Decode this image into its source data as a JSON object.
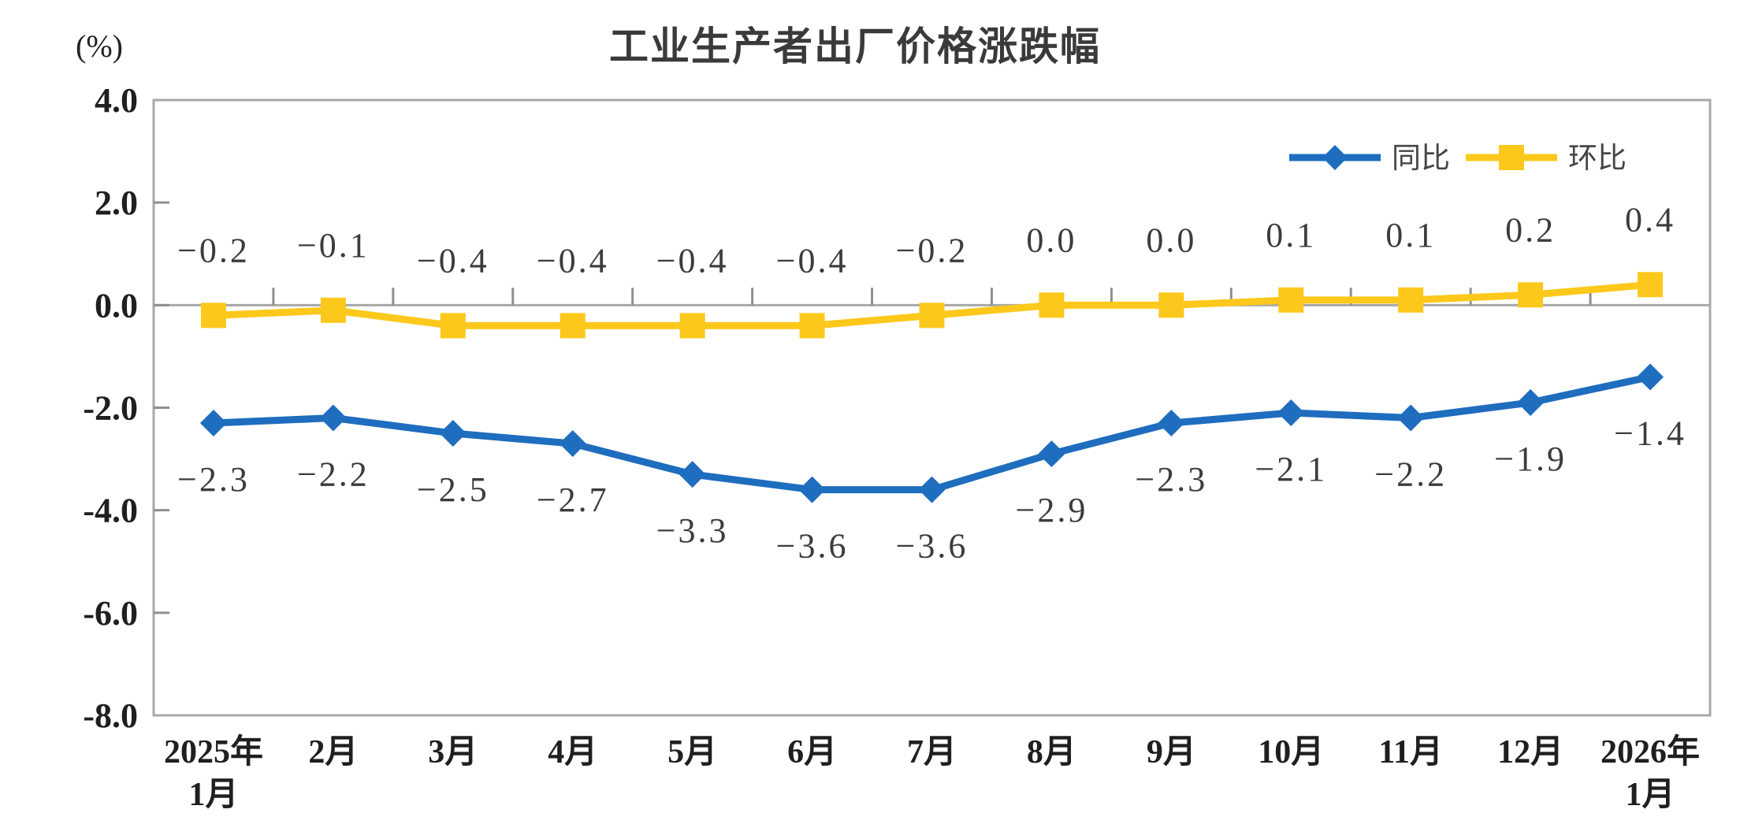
{
  "title": "工业生产者出厂价格涨跌幅",
  "y_axis_unit": "(%)",
  "colors": {
    "series_yoy": "#1e6dbe",
    "series_mom": "#fcc81b",
    "axis": "#a8a8a8",
    "tick_label": "#1f1f1f",
    "data_label": "#3c3c3c",
    "title": "#3a3a3a"
  },
  "legend": {
    "position": "top-right-inside",
    "items": [
      {
        "label": "同比",
        "marker": "diamond",
        "color": "#1e6dbe"
      },
      {
        "label": "环比",
        "marker": "square",
        "color": "#fcc81b"
      }
    ]
  },
  "chart_data": {
    "type": "line",
    "title": "工业生产者出厂价格涨跌幅",
    "ylabel": "(%)",
    "xlabel": "",
    "ylim": [
      -8.0,
      4.0
    ],
    "yticks": [
      4.0,
      2.0,
      0.0,
      -2.0,
      -4.0,
      -6.0,
      -8.0
    ],
    "grid": false,
    "zero_axis": true,
    "legend_position": "top-right",
    "categories": [
      "2025年\n1月",
      "2月",
      "3月",
      "4月",
      "5月",
      "6月",
      "7月",
      "8月",
      "9月",
      "10月",
      "11月",
      "12月",
      "2026年\n1月"
    ],
    "series": [
      {
        "name": "同比",
        "marker": "diamond",
        "color": "#1e6dbe",
        "label_position": "below",
        "values": [
          -2.3,
          -2.2,
          -2.5,
          -2.7,
          -3.3,
          -3.6,
          -3.6,
          -2.9,
          -2.3,
          -2.1,
          -2.2,
          -1.9,
          -1.4
        ]
      },
      {
        "name": "环比",
        "marker": "square",
        "color": "#fcc81b",
        "label_position": "above",
        "values": [
          -0.2,
          -0.1,
          -0.4,
          -0.4,
          -0.4,
          -0.4,
          -0.2,
          0.0,
          0.0,
          0.1,
          0.1,
          0.2,
          0.4
        ]
      }
    ]
  }
}
